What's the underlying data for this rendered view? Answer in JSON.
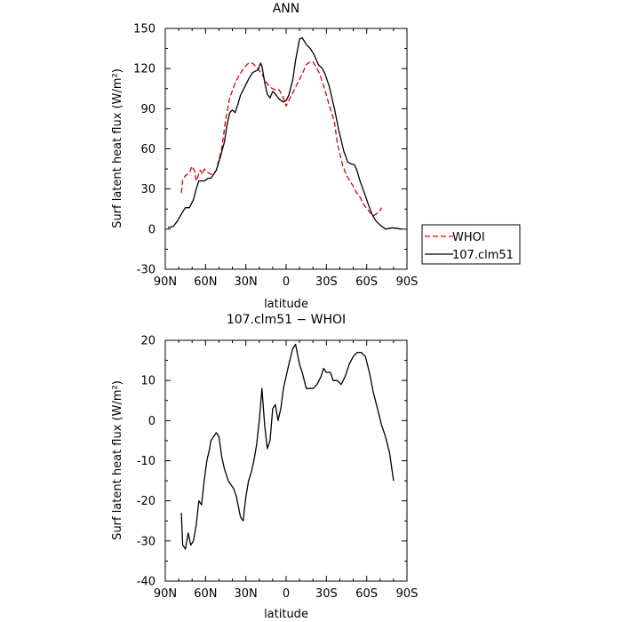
{
  "chart_data": [
    {
      "type": "line",
      "title": "ANN",
      "xlabel": "latitude",
      "ylabel": "Surf latent heat flux (W/m²)",
      "xlim": [
        90,
        -90
      ],
      "ylim": [
        -30,
        150
      ],
      "xticks": [
        {
          "value": 90,
          "label": "90N"
        },
        {
          "value": 60,
          "label": "60N"
        },
        {
          "value": 30,
          "label": "30N"
        },
        {
          "value": 0,
          "label": "0"
        },
        {
          "value": -30,
          "label": "30S"
        },
        {
          "value": -60,
          "label": "60S"
        },
        {
          "value": -90,
          "label": "90S"
        }
      ],
      "yticks": [
        -30,
        0,
        30,
        60,
        90,
        120,
        150
      ],
      "legend": {
        "placement": "right-outside"
      },
      "series": [
        {
          "name": "WHOI",
          "color": "#dd0000",
          "dash": true,
          "points": [
            [
              78,
              27
            ],
            [
              77,
              37
            ],
            [
              75,
              40
            ],
            [
              72,
              42
            ],
            [
              70,
              47
            ],
            [
              68,
              43
            ],
            [
              67,
              36
            ],
            [
              64,
              44
            ],
            [
              62,
              41
            ],
            [
              61,
              45
            ],
            [
              58,
              42
            ],
            [
              56,
              41
            ],
            [
              54,
              41
            ],
            [
              52,
              44
            ],
            [
              48,
              60
            ],
            [
              45,
              82
            ],
            [
              42,
              98
            ],
            [
              38,
              109
            ],
            [
              35,
              115
            ],
            [
              31,
              121
            ],
            [
              28,
              124
            ],
            [
              25,
              124
            ],
            [
              22,
              121
            ],
            [
              18,
              116
            ],
            [
              15,
              110
            ],
            [
              12,
              106
            ],
            [
              8,
              104
            ],
            [
              5,
              104
            ],
            [
              2,
              98
            ],
            [
              0,
              92
            ],
            [
              -2,
              96
            ],
            [
              -5,
              102
            ],
            [
              -8,
              108
            ],
            [
              -12,
              116
            ],
            [
              -15,
              123
            ],
            [
              -18,
              125
            ],
            [
              -20,
              125
            ],
            [
              -22,
              122
            ],
            [
              -25,
              116
            ],
            [
              -28,
              107
            ],
            [
              -32,
              93
            ],
            [
              -36,
              80
            ],
            [
              -38,
              65
            ],
            [
              -42,
              48
            ],
            [
              -45,
              40
            ],
            [
              -50,
              32
            ],
            [
              -52,
              28
            ],
            [
              -55,
              24
            ],
            [
              -58,
              18
            ],
            [
              -62,
              13
            ],
            [
              -65,
              10
            ],
            [
              -68,
              12
            ],
            [
              -70,
              14
            ],
            [
              -71,
              16
            ]
          ]
        },
        {
          "name": "107.clm51",
          "color": "#000000",
          "dash": false,
          "points": [
            [
              88,
              1
            ],
            [
              84,
              2
            ],
            [
              81,
              6
            ],
            [
              77,
              13
            ],
            [
              75,
              16
            ],
            [
              72,
              16
            ],
            [
              69,
              22
            ],
            [
              67,
              30
            ],
            [
              65,
              36
            ],
            [
              61,
              36
            ],
            [
              58,
              38
            ],
            [
              56,
              38
            ],
            [
              52,
              44
            ],
            [
              49,
              54
            ],
            [
              46,
              65
            ],
            [
              44,
              78
            ],
            [
              42,
              87
            ],
            [
              40,
              89
            ],
            [
              38,
              87
            ],
            [
              36,
              93
            ],
            [
              34,
              100
            ],
            [
              31,
              106
            ],
            [
              28,
              112
            ],
            [
              25,
              117
            ],
            [
              21,
              119
            ],
            [
              19,
              124
            ],
            [
              18,
              122
            ],
            [
              16,
              110
            ],
            [
              14,
              101
            ],
            [
              12,
              98
            ],
            [
              10,
              103
            ],
            [
              8,
              101
            ],
            [
              5,
              97
            ],
            [
              2,
              95
            ],
            [
              0,
              96
            ],
            [
              -2,
              100
            ],
            [
              -5,
              112
            ],
            [
              -7,
              126
            ],
            [
              -10,
              142
            ],
            [
              -12,
              143
            ],
            [
              -15,
              138
            ],
            [
              -18,
              135
            ],
            [
              -21,
              130
            ],
            [
              -24,
              123
            ],
            [
              -27,
              120
            ],
            [
              -29,
              116
            ],
            [
              -32,
              107
            ],
            [
              -36,
              90
            ],
            [
              -39,
              75
            ],
            [
              -43,
              58
            ],
            [
              -46,
              50
            ],
            [
              -48,
              49
            ],
            [
              -51,
              48
            ],
            [
              -53,
              43
            ],
            [
              -55,
              36
            ],
            [
              -58,
              28
            ],
            [
              -61,
              19
            ],
            [
              -64,
              11
            ],
            [
              -67,
              6
            ],
            [
              -70,
              3
            ],
            [
              -74,
              0
            ],
            [
              -79,
              1
            ],
            [
              -86,
              0
            ]
          ]
        }
      ]
    },
    {
      "type": "line",
      "title": "107.clm51 − WHOI",
      "xlabel": "latitude",
      "ylabel": "Surf latent heat flux (W/m²)",
      "xlim": [
        90,
        -90
      ],
      "ylim": [
        -40,
        20
      ],
      "xticks": [
        {
          "value": 90,
          "label": "90N"
        },
        {
          "value": 60,
          "label": "60N"
        },
        {
          "value": 30,
          "label": "30N"
        },
        {
          "value": 0,
          "label": "0"
        },
        {
          "value": -30,
          "label": "30S"
        },
        {
          "value": -60,
          "label": "60S"
        },
        {
          "value": -90,
          "label": "90S"
        }
      ],
      "yticks": [
        -40,
        -30,
        -20,
        -10,
        0,
        10,
        20
      ],
      "series": [
        {
          "color": "#000000",
          "dash": false,
          "points": [
            [
              78,
              -23
            ],
            [
              77,
              -31
            ],
            [
              75,
              -32
            ],
            [
              73,
              -28
            ],
            [
              71,
              -31
            ],
            [
              69,
              -30
            ],
            [
              67,
              -26
            ],
            [
              65,
              -20
            ],
            [
              63,
              -21
            ],
            [
              61,
              -15
            ],
            [
              59,
              -10
            ],
            [
              57,
              -7
            ],
            [
              56,
              -5
            ],
            [
              54,
              -4
            ],
            [
              52,
              -3
            ],
            [
              50,
              -4
            ],
            [
              48,
              -9
            ],
            [
              46,
              -12
            ],
            [
              43,
              -15
            ],
            [
              41,
              -16
            ],
            [
              39,
              -17
            ],
            [
              37,
              -19
            ],
            [
              34,
              -24
            ],
            [
              32,
              -25
            ],
            [
              30,
              -19
            ],
            [
              28,
              -15
            ],
            [
              26,
              -13
            ],
            [
              24,
              -10
            ],
            [
              22,
              -6
            ],
            [
              20,
              0
            ],
            [
              18,
              8
            ],
            [
              16,
              -1
            ],
            [
              14,
              -7
            ],
            [
              12,
              -5
            ],
            [
              10,
              3
            ],
            [
              8,
              4
            ],
            [
              6,
              0
            ],
            [
              4,
              3
            ],
            [
              2,
              8
            ],
            [
              0,
              11
            ],
            [
              -2,
              14
            ],
            [
              -5,
              18
            ],
            [
              -7,
              19
            ],
            [
              -10,
              14
            ],
            [
              -12,
              12
            ],
            [
              -15,
              8
            ],
            [
              -17,
              8
            ],
            [
              -20,
              8
            ],
            [
              -23,
              9
            ],
            [
              -26,
              11
            ],
            [
              -28,
              13
            ],
            [
              -30,
              12
            ],
            [
              -33,
              12
            ],
            [
              -35,
              10
            ],
            [
              -38,
              10
            ],
            [
              -41,
              9
            ],
            [
              -44,
              11
            ],
            [
              -47,
              14
            ],
            [
              -50,
              16
            ],
            [
              -53,
              17
            ],
            [
              -56,
              17
            ],
            [
              -59,
              16
            ],
            [
              -62,
              12
            ],
            [
              -65,
              7
            ],
            [
              -68,
              3
            ],
            [
              -71,
              -1
            ],
            [
              -74,
              -4
            ],
            [
              -77,
              -8
            ],
            [
              -80,
              -15
            ]
          ]
        }
      ]
    }
  ]
}
